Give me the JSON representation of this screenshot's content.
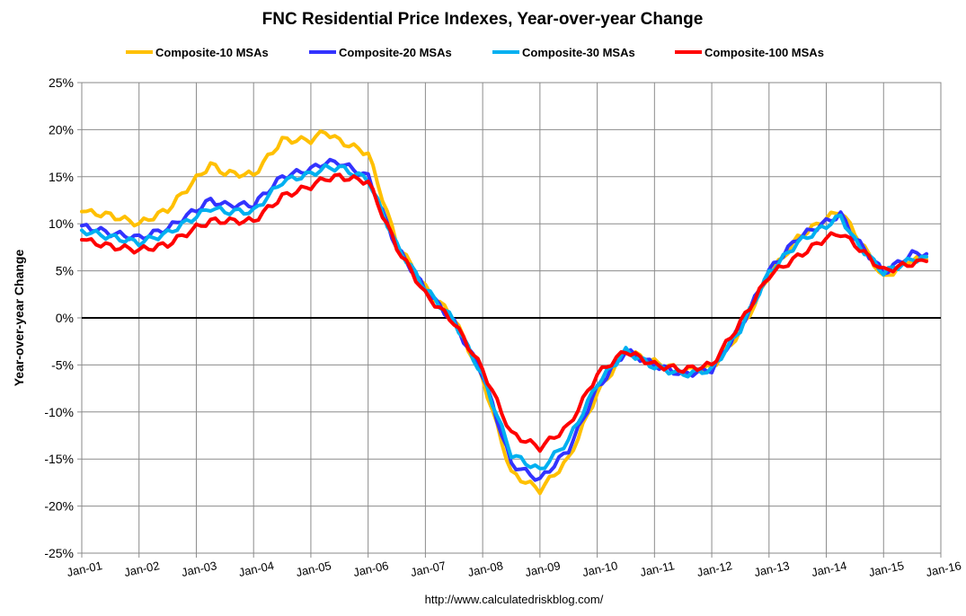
{
  "chart_data": {
    "type": "line",
    "title": "FNC Residential Price Indexes, Year-over-year Change",
    "ylabel": "Year-over-year Change",
    "xlabel": "",
    "source": "http://www.calculatedriskblog.com/",
    "ylim": [
      -25,
      25
    ],
    "y_tick_step": 5,
    "y_tick_labels": [
      "25%",
      "20%",
      "15%",
      "10%",
      "5%",
      "0%",
      "-5%",
      "-10%",
      "-15%",
      "-20%",
      "-25%"
    ],
    "x_tick_labels": [
      "Jan-01",
      "Jan-02",
      "Jan-03",
      "Jan-04",
      "Jan-05",
      "Jan-06",
      "Jan-07",
      "Jan-08",
      "Jan-09",
      "Jan-10",
      "Jan-11",
      "Jan-12",
      "Jan-13",
      "Jan-14",
      "Jan-15",
      "Jan-16"
    ],
    "x_start": "Jan-01",
    "x_end": "Jan-16",
    "grid": true,
    "legend_position": "top",
    "series": [
      {
        "name": "Composite-10 MSAs",
        "color": "#FFC000",
        "points": [
          [
            "Jan-01",
            11.3
          ],
          [
            "Jul-01",
            10.9
          ],
          [
            "Jan-02",
            10.0
          ],
          [
            "Jul-02",
            11.5
          ],
          [
            "Jan-03",
            14.8
          ],
          [
            "Apr-03",
            16.3
          ],
          [
            "Jul-03",
            15.4
          ],
          [
            "Jan-04",
            15.2
          ],
          [
            "Jul-04",
            18.9
          ],
          [
            "Jan-05",
            18.9
          ],
          [
            "Apr-05",
            19.8
          ],
          [
            "Jul-05",
            18.8
          ],
          [
            "Jan-06",
            17.5
          ],
          [
            "Jul-06",
            8.0
          ],
          [
            "Jan-07",
            3.2
          ],
          [
            "Jul-07",
            0.0
          ],
          [
            "Jan-08",
            -6.5
          ],
          [
            "Jul-08",
            -16.5
          ],
          [
            "Jan-09",
            -18.3
          ],
          [
            "Jul-09",
            -15.0
          ],
          [
            "Jan-10",
            -8.0
          ],
          [
            "Jul-10",
            -3.5
          ],
          [
            "Jan-11",
            -4.7
          ],
          [
            "Jul-11",
            -5.6
          ],
          [
            "Jan-12",
            -5.3
          ],
          [
            "Jul-12",
            -1.5
          ],
          [
            "Jan-13",
            4.5
          ],
          [
            "Jul-13",
            8.5
          ],
          [
            "Jan-14",
            10.6
          ],
          [
            "Apr-14",
            11.4
          ],
          [
            "Jul-14",
            9.0
          ],
          [
            "Jan-15",
            4.2
          ],
          [
            "Jul-15",
            6.3
          ],
          [
            "Oct-15",
            6.2
          ]
        ]
      },
      {
        "name": "Composite-20 MSAs",
        "color": "#3333FF",
        "points": [
          [
            "Jan-01",
            9.8
          ],
          [
            "Jul-01",
            9.0
          ],
          [
            "Jan-02",
            8.5
          ],
          [
            "Jul-02",
            9.5
          ],
          [
            "Jan-03",
            11.5
          ],
          [
            "Apr-03",
            12.5
          ],
          [
            "Jul-03",
            12.0
          ],
          [
            "Jan-04",
            12.0
          ],
          [
            "Jul-04",
            15.0
          ],
          [
            "Jan-05",
            15.8
          ],
          [
            "Apr-05",
            16.5
          ],
          [
            "Jul-05",
            16.5
          ],
          [
            "Jan-06",
            15.0
          ],
          [
            "Jul-06",
            7.5
          ],
          [
            "Jan-07",
            3.0
          ],
          [
            "Jul-07",
            -0.5
          ],
          [
            "Jan-08",
            -6.0
          ],
          [
            "Jul-08",
            -15.5
          ],
          [
            "Jan-09",
            -17.2
          ],
          [
            "Jul-09",
            -14.0
          ],
          [
            "Jan-10",
            -7.5
          ],
          [
            "Jul-10",
            -3.5
          ],
          [
            "Jan-11",
            -5.0
          ],
          [
            "Jul-11",
            -6.0
          ],
          [
            "Jan-12",
            -5.5
          ],
          [
            "Jul-12",
            -1.0
          ],
          [
            "Jan-13",
            5.0
          ],
          [
            "Jul-13",
            8.5
          ],
          [
            "Jan-14",
            10.2
          ],
          [
            "Apr-14",
            11.0
          ],
          [
            "Jul-14",
            8.5
          ],
          [
            "Jan-15",
            4.8
          ],
          [
            "Jul-15",
            6.8
          ],
          [
            "Oct-15",
            6.8
          ]
        ]
      },
      {
        "name": "Composite-30 MSAs",
        "color": "#00B0F0",
        "points": [
          [
            "Jan-01",
            9.3
          ],
          [
            "Jul-01",
            8.6
          ],
          [
            "Jan-02",
            8.0
          ],
          [
            "Jul-02",
            9.0
          ],
          [
            "Jan-03",
            10.8
          ],
          [
            "Apr-03",
            11.7
          ],
          [
            "Jul-03",
            11.3
          ],
          [
            "Jan-04",
            11.3
          ],
          [
            "Jul-04",
            14.5
          ],
          [
            "Jan-05",
            15.3
          ],
          [
            "Apr-05",
            15.9
          ],
          [
            "Jul-05",
            16.0
          ],
          [
            "Jan-06",
            14.7
          ],
          [
            "Jul-06",
            7.7
          ],
          [
            "Jan-07",
            3.1
          ],
          [
            "Jul-07",
            -0.3
          ],
          [
            "Jan-08",
            -6.2
          ],
          [
            "Jul-08",
            -14.5
          ],
          [
            "Jan-09",
            -16.2
          ],
          [
            "Jul-09",
            -13.0
          ],
          [
            "Jan-10",
            -7.0
          ],
          [
            "Jul-10",
            -3.5
          ],
          [
            "Jan-11",
            -5.2
          ],
          [
            "Jul-11",
            -6.0
          ],
          [
            "Jan-12",
            -5.5
          ],
          [
            "Jul-12",
            -1.2
          ],
          [
            "Jan-13",
            4.8
          ],
          [
            "Jul-13",
            8.0
          ],
          [
            "Jan-14",
            9.8
          ],
          [
            "Apr-14",
            10.8
          ],
          [
            "Jul-14",
            8.2
          ],
          [
            "Jan-15",
            4.8
          ],
          [
            "Jul-15",
            6.2
          ],
          [
            "Oct-15",
            6.5
          ]
        ]
      },
      {
        "name": "Composite-100 MSAs",
        "color": "#FF0000",
        "points": [
          [
            "Jan-01",
            8.3
          ],
          [
            "Jul-01",
            7.6
          ],
          [
            "Jan-02",
            7.2
          ],
          [
            "Jul-02",
            7.8
          ],
          [
            "Jan-03",
            9.6
          ],
          [
            "Apr-03",
            10.3
          ],
          [
            "Jul-03",
            10.3
          ],
          [
            "Jan-04",
            10.3
          ],
          [
            "Jul-04",
            12.9
          ],
          [
            "Jan-05",
            14.0
          ],
          [
            "Apr-05",
            14.8
          ],
          [
            "Jul-05",
            15.0
          ],
          [
            "Jan-06",
            14.5
          ],
          [
            "Jul-06",
            7.5
          ],
          [
            "Jan-07",
            2.5
          ],
          [
            "Jul-07",
            -0.5
          ],
          [
            "Jan-08",
            -5.5
          ],
          [
            "Jul-08",
            -12.3
          ],
          [
            "Jan-09",
            -13.8
          ],
          [
            "Jul-09",
            -11.5
          ],
          [
            "Jan-10",
            -6.0
          ],
          [
            "Jul-10",
            -3.5
          ],
          [
            "Jan-11",
            -5.0
          ],
          [
            "Jul-11",
            -5.5
          ],
          [
            "Jan-12",
            -5.0
          ],
          [
            "Jul-12",
            -0.5
          ],
          [
            "Jan-13",
            4.5
          ],
          [
            "Jul-13",
            6.5
          ],
          [
            "Jan-14",
            8.5
          ],
          [
            "Apr-14",
            9.0
          ],
          [
            "Jul-14",
            7.8
          ],
          [
            "Jan-15",
            5.0
          ],
          [
            "Jul-15",
            5.8
          ],
          [
            "Oct-15",
            6.0
          ]
        ]
      }
    ]
  }
}
